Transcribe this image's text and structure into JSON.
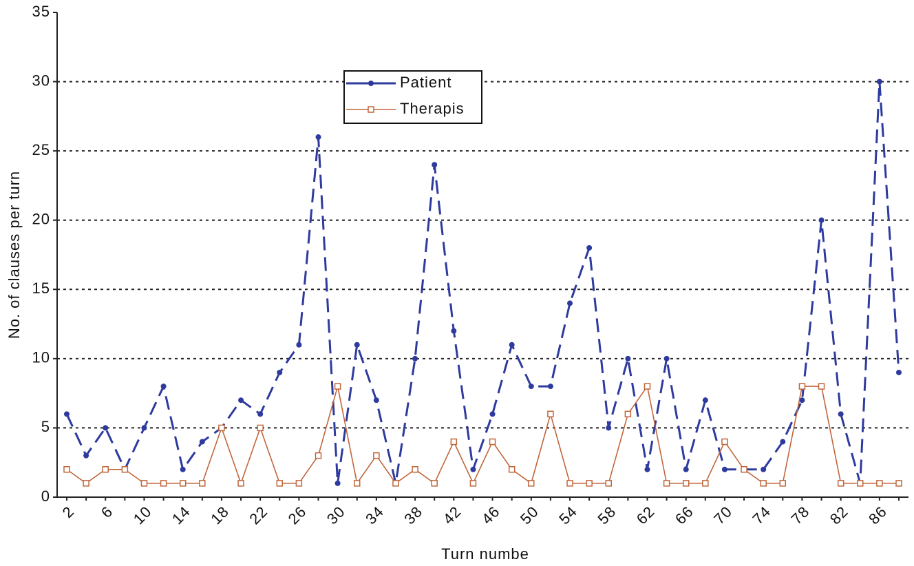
{
  "chart_data": {
    "type": "line",
    "x_label": "Turn  numbe",
    "y_label": "No. of clauses per turn",
    "categories": [
      "2",
      null,
      "6",
      null,
      "10",
      null,
      "14",
      null,
      "18",
      null,
      "22",
      null,
      "26",
      null,
      "30",
      null,
      "34",
      null,
      "38",
      null,
      "42",
      null,
      "46",
      null,
      "50",
      null,
      "54",
      null,
      "58",
      null,
      "62",
      null,
      "66",
      null,
      "70",
      null,
      "74",
      null,
      "78",
      null,
      "82",
      null,
      "86",
      null
    ],
    "series": [
      {
        "name": "Patient",
        "color": "#2e3a9e",
        "values": [
          6,
          3,
          5,
          2,
          5,
          8,
          2,
          4,
          5,
          7,
          6,
          9,
          11,
          26,
          1,
          11,
          7,
          1,
          10,
          24,
          12,
          2,
          6,
          11,
          8,
          8,
          14,
          18,
          5,
          10,
          2,
          10,
          2,
          7,
          2,
          2,
          2,
          4,
          7,
          20,
          6,
          1,
          30,
          9
        ]
      },
      {
        "name": "Therapis",
        "color": "#c0663a",
        "values": [
          2,
          1,
          2,
          2,
          1,
          1,
          1,
          1,
          5,
          1,
          5,
          1,
          1,
          3,
          8,
          1,
          3,
          1,
          2,
          1,
          4,
          1,
          4,
          2,
          1,
          6,
          1,
          1,
          1,
          6,
          8,
          1,
          1,
          1,
          4,
          2,
          1,
          1,
          8,
          8,
          1,
          1,
          1,
          1
        ]
      }
    ],
    "ylim": [
      0,
      35
    ],
    "yticks": [
      0,
      5,
      10,
      15,
      20,
      25,
      30,
      35
    ],
    "grid": true
  }
}
